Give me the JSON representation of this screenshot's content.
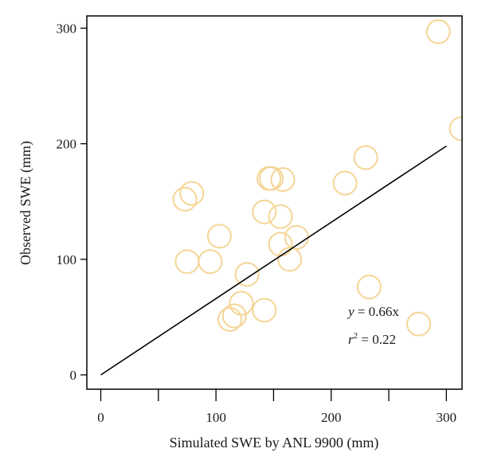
{
  "chart_data": {
    "type": "scatter",
    "title": "",
    "xlabel": "Simulated SWE by ANL 9900 (mm)",
    "ylabel": "Observed SWE (mm)",
    "xlim": [
      -15,
      311
    ],
    "ylim": [
      -13,
      310
    ],
    "x_ticks": [
      0,
      100,
      200,
      300
    ],
    "y_ticks": [
      0,
      100,
      200,
      300
    ],
    "grid": false,
    "legend": "none",
    "marker_color": "#f5d596",
    "line_color": "#000000",
    "points": [
      {
        "x": 293,
        "y": 297
      },
      {
        "x": 313,
        "y": 213
      },
      {
        "x": 230,
        "y": 188
      },
      {
        "x": 212,
        "y": 166
      },
      {
        "x": 146,
        "y": 170
      },
      {
        "x": 148,
        "y": 170
      },
      {
        "x": 158,
        "y": 169
      },
      {
        "x": 79,
        "y": 157
      },
      {
        "x": 73,
        "y": 152
      },
      {
        "x": 142,
        "y": 141
      },
      {
        "x": 156,
        "y": 137
      },
      {
        "x": 103,
        "y": 120
      },
      {
        "x": 170,
        "y": 119
      },
      {
        "x": 156,
        "y": 113
      },
      {
        "x": 164,
        "y": 100
      },
      {
        "x": 75,
        "y": 98
      },
      {
        "x": 95,
        "y": 98
      },
      {
        "x": 127,
        "y": 87
      },
      {
        "x": 233,
        "y": 76
      },
      {
        "x": 122,
        "y": 62
      },
      {
        "x": 142,
        "y": 56
      },
      {
        "x": 116,
        "y": 51
      },
      {
        "x": 112,
        "y": 48
      },
      {
        "x": 276,
        "y": 44
      }
    ],
    "fit_line": {
      "slope": 0.66,
      "x": [
        0,
        300
      ],
      "y": [
        0,
        198
      ]
    },
    "annotations": {
      "equation_var": "y",
      "equation_rest": " = 0.66x",
      "r2_var": "r",
      "r2_sup": "2",
      "r2_rest": " = 0.22"
    }
  }
}
